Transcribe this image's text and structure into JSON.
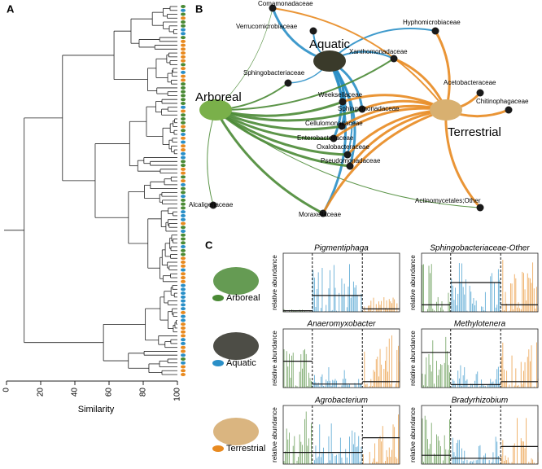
{
  "panel_labels": [
    "A",
    "B",
    "C"
  ],
  "dendrogram": {
    "xlabel": "Similarity",
    "xlim": [
      0,
      100
    ],
    "xticks": [
      0,
      20,
      40,
      60,
      80,
      100
    ]
  },
  "network": {
    "hubs": [
      "Aquatic",
      "Arboreal",
      "Terrestrial"
    ],
    "nodes": [
      "Comamonadaceae",
      "Verrucomicrobiaceae",
      "Hyphomicrobiaceae",
      "Xanthomonadaceae",
      "Acetobacteraceae",
      "Sphingobacteriaceae",
      "Chitinophagaceae",
      "Weeksellaceae",
      "Sphingomonadaceae",
      "Cellulomonadaceae",
      "Enterobacteriaceae",
      "Oxalobacteraceae",
      "Pseudomonadaceae",
      "Actinomycetales;Other",
      "Alcaligenaceae",
      "Moraxellaceae"
    ]
  },
  "abundance": {
    "ylabel": "relative abundance",
    "groups": [
      {
        "label": "Arboreal",
        "color": "#4a8a35"
      },
      {
        "label": "Aquatic",
        "color": "#2a8fc7"
      },
      {
        "label": "Terrestrial",
        "color": "#e88a20"
      }
    ],
    "panels": [
      "Pigmentiphaga",
      "Sphingobacteriaceae-Other",
      "Anaeromyxobacter",
      "Methylotenera",
      "Agrobacterium",
      "Bradyrhizobium"
    ]
  }
}
